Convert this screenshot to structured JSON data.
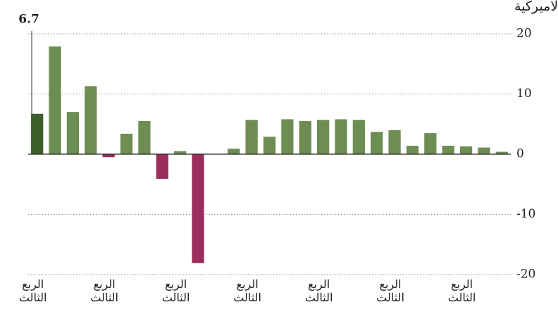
{
  "chart_data": {
    "type": "bar",
    "title": "صافي الربح حسب الفصل بمليارات الدولارات الاميركية",
    "categories": [
      "الربع الثالث",
      null,
      null,
      null,
      "الربع الثالث",
      null,
      null,
      null,
      "الربع الثالث",
      null,
      null,
      null,
      "الربع الثالث",
      null,
      null,
      null,
      "الربع الثالث",
      null,
      null,
      null,
      "الربع الثالث",
      null,
      null,
      null,
      "الربع الثالث",
      null,
      null
    ],
    "values": [
      6.7,
      17.9,
      7.0,
      11.3,
      -0.5,
      3.4,
      5.5,
      -4.1,
      0.5,
      -18.1,
      null,
      0.9,
      5.7,
      2.9,
      5.8,
      5.5,
      5.7,
      5.8,
      5.7,
      3.7,
      4.0,
      1.4,
      3.5,
      1.4,
      1.3,
      1.1,
      0.4
    ],
    "value_labels": [
      "6.7",
      null,
      null,
      null,
      null,
      null,
      null,
      null,
      null,
      null,
      null,
      null,
      null,
      null,
      null,
      null,
      null,
      null,
      null,
      null,
      null,
      null,
      null,
      null,
      null,
      null,
      null
    ],
    "colors": [
      "#3d5f2c",
      "#6e8d52",
      "#6e8d52",
      "#6e8d52",
      "#9b2f5c",
      "#6e8d52",
      "#6e8d52",
      "#9b2f5c",
      "#6e8d52",
      "#9b2f5c",
      null,
      "#6e8d52",
      "#6e8d52",
      "#6e8d52",
      "#6e8d52",
      "#6e8d52",
      "#6e8d52",
      "#6e8d52",
      "#6e8d52",
      "#6e8d52",
      "#6e8d52",
      "#6e8d52",
      "#6e8d52",
      "#6e8d52",
      "#6e8d52",
      "#6e8d52",
      "#6e8d52"
    ],
    "ylim": [
      -20,
      20
    ],
    "yticks": [
      -20,
      -10,
      0,
      10,
      20
    ],
    "grid": true,
    "y_axis_side": "right"
  }
}
